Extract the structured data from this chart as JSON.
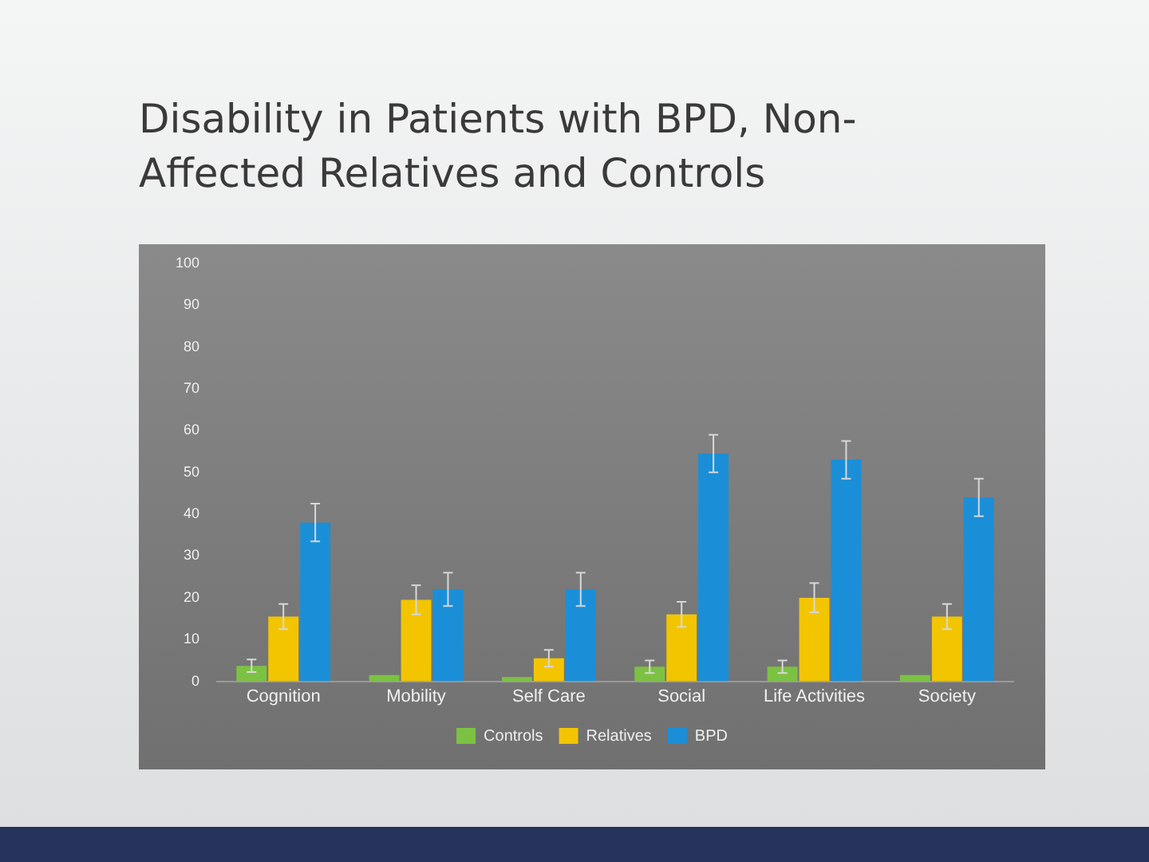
{
  "chart_data": {
    "type": "bar",
    "title": "Disability in Patients with BPD, Non-Affected Relatives and Controls",
    "categories": [
      "Cognition",
      "Mobility",
      "Self Care",
      "Social",
      "Life Activities",
      "Society"
    ],
    "series": [
      {
        "name": "Controls",
        "color": "#7cc242",
        "values": [
          3.7,
          1.5,
          1,
          3.5,
          3.5,
          1.5
        ],
        "errors": [
          1.5,
          null,
          null,
          1.5,
          1.5,
          null
        ]
      },
      {
        "name": "Relatives",
        "color": "#f2c500",
        "values": [
          15.5,
          19.5,
          5.5,
          16,
          20,
          15.5
        ],
        "errors": [
          3,
          3.5,
          2,
          3,
          3.5,
          3
        ]
      },
      {
        "name": "BPD",
        "color": "#1a8fd8",
        "values": [
          38,
          22,
          22,
          54.5,
          53,
          44
        ],
        "errors": [
          4.5,
          4,
          4,
          4.5,
          4.5,
          4.5
        ]
      }
    ],
    "ylim": [
      0,
      100
    ],
    "yticks": [
      0,
      10,
      20,
      30,
      40,
      50,
      60,
      70,
      80,
      90,
      100
    ],
    "grid": false,
    "legend": "bottom"
  }
}
